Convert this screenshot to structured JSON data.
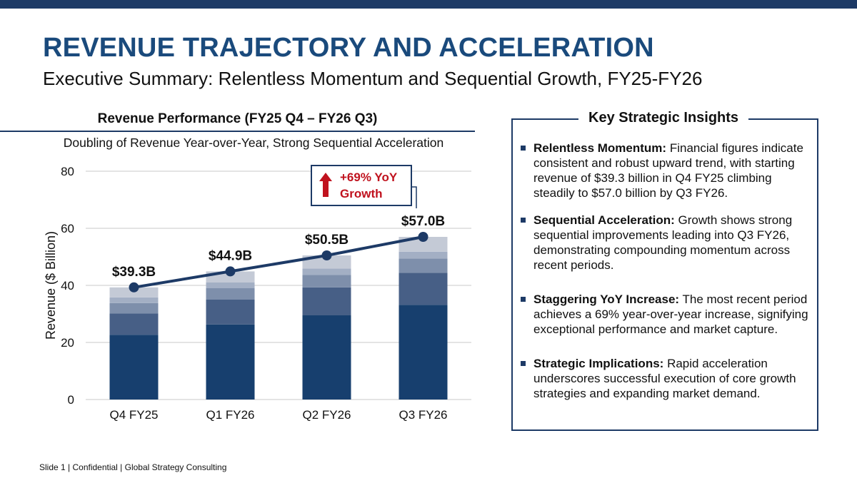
{
  "header": {
    "title": "REVENUE TRAJECTORY AND ACCELERATION",
    "subtitle": "Executive Summary: Relentless Momentum and Sequential Growth, FY25-FY26"
  },
  "chart_data": {
    "type": "bar",
    "title": "Revenue Performance (FY25 Q4 – FY26 Q3)",
    "subtitle": "Doubling of Revenue Year-over-Year, Strong Sequential Acceleration",
    "xlabel": "",
    "ylabel": "Revenue ($ Billion)",
    "ylim": [
      0,
      80
    ],
    "yticks": [
      "0",
      "20",
      "40",
      "60",
      "80"
    ],
    "grid": true,
    "categories": [
      "Q4 FY25",
      "Q1 FY26",
      "Q2 FY26",
      "Q3 FY26"
    ],
    "stack_colors": [
      "#173f6e",
      "#475f86",
      "#7e8fab",
      "#a3afc4",
      "#c4cad6"
    ],
    "stacked_segments": [
      [
        22.7,
        7.5,
        3.6,
        2.0,
        3.5
      ],
      [
        26.3,
        8.7,
        4.0,
        2.0,
        3.9
      ],
      [
        29.5,
        9.8,
        4.4,
        2.2,
        4.6
      ],
      [
        33.2,
        11.2,
        5.0,
        2.4,
        5.2
      ]
    ],
    "series": [
      {
        "name": "Revenue",
        "values": [
          39.3,
          44.9,
          50.5,
          57.0
        ],
        "labels": [
          "$39.3B",
          "$44.9B",
          "$50.5B",
          "$57.0B"
        ]
      }
    ],
    "callout": {
      "line1": "+69% YoY",
      "line2": "Growth",
      "arrow": "up-arrow-icon"
    }
  },
  "insights": {
    "title": "Key Strategic Insights",
    "items": [
      {
        "heading": "Relentless Momentum:",
        "text": "Financial figures indicate consistent and robust upward trend, with starting revenue of $39.3 billion in Q4 FY25 climbing steadily to $57.0 billion by Q3 FY26."
      },
      {
        "heading": "Sequential Acceleration:",
        "text": "Growth shows strong sequential improvements leading into Q3 FY26, demonstrating compounding momentum across recent periods."
      },
      {
        "heading": "Staggering YoY Increase:",
        "text": "The most recent period achieves a 69% year-over-year increase, signifying exceptional performance and market capture."
      },
      {
        "heading": "Strategic Implications:",
        "text": "Rapid acceleration underscores successful execution of core growth strategies and expanding market demand."
      }
    ]
  },
  "footer": {
    "text": "Slide 1 | Confidential | Global Strategy Consulting"
  },
  "colors": {
    "brand": "#1a4a7c",
    "line": "#1d3a66",
    "callout": "#c0121e"
  }
}
